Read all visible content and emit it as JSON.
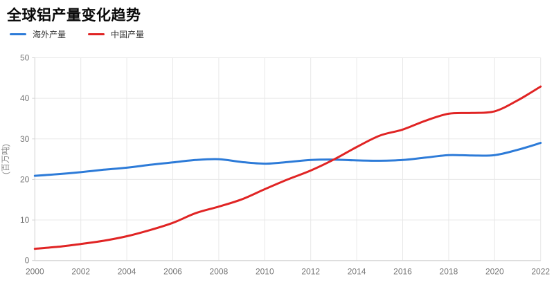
{
  "header": {
    "title": "全球铝产量变化趋势"
  },
  "legend": {
    "items": [
      {
        "id": "overseas",
        "label": "海外产量",
        "color": "#2d7bd8"
      },
      {
        "id": "china",
        "label": "中国产量",
        "color": "#e02424"
      }
    ]
  },
  "chart_data": {
    "type": "line",
    "smooth": true,
    "x": [
      2000,
      2001,
      2002,
      2003,
      2004,
      2005,
      2006,
      2007,
      2008,
      2009,
      2010,
      2011,
      2012,
      2013,
      2014,
      2015,
      2016,
      2017,
      2018,
      2019,
      2020,
      2021,
      2022
    ],
    "series": [
      {
        "name": "海外产量",
        "color": "#2d7bd8",
        "values": [
          20.9,
          21.3,
          21.8,
          22.4,
          22.9,
          23.6,
          24.2,
          24.8,
          25.0,
          24.3,
          23.9,
          24.3,
          24.8,
          24.9,
          24.7,
          24.6,
          24.8,
          25.4,
          26.0,
          25.9,
          26.0,
          27.3,
          29.0
        ]
      },
      {
        "name": "中国产量",
        "color": "#e02424",
        "values": [
          2.9,
          3.4,
          4.1,
          4.9,
          6.0,
          7.5,
          9.3,
          11.7,
          13.3,
          15.1,
          17.6,
          20.0,
          22.2,
          24.9,
          28.0,
          30.8,
          32.3,
          34.5,
          36.2,
          36.4,
          36.8,
          39.5,
          42.9
        ]
      }
    ],
    "title": "全球铝产量变化趋势",
    "xlabel": "",
    "ylabel": "(百万吨)",
    "ylim": [
      0,
      50
    ],
    "yticks": [
      0,
      10,
      20,
      30,
      40,
      50
    ],
    "xticks": [
      2000,
      2002,
      2004,
      2006,
      2008,
      2010,
      2012,
      2014,
      2016,
      2018,
      2020,
      2022
    ],
    "grid": true,
    "legend_position": "top-left"
  },
  "style": {
    "grid_color": "#e8e8e8",
    "axis_color": "#d4d4d4",
    "tick_text_color": "#767676",
    "axis_name_color": "#8a8a8a",
    "background": "#ffffff"
  }
}
